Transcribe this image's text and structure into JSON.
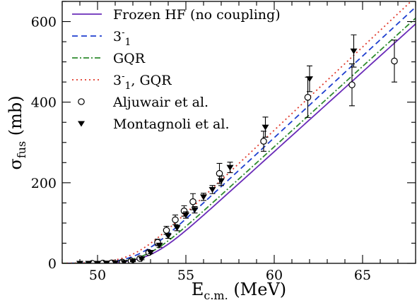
{
  "chart_data": {
    "type": "line",
    "xlabel": {
      "main": "E",
      "sub": "c.m.",
      "unit": " (MeV)"
    },
    "ylabel": {
      "main": "σ",
      "sub": "fus",
      "unit": " (mb)"
    },
    "xlim": [
      48,
      68
    ],
    "ylim": [
      0,
      650
    ],
    "xticks": [
      "50",
      "55",
      "60",
      "65"
    ],
    "yticks": [
      "0",
      "200",
      "400",
      "600"
    ],
    "legend_position": "top-left",
    "series": [
      {
        "key": "frozen",
        "label": "Frozen HF (no coupling)",
        "color": "#6a2bb8",
        "dash": "",
        "threshold": 53.0,
        "slope": 39.6,
        "width": 0.8
      },
      {
        "key": "octupole",
        "label": "3⁻₁",
        "color": "#1f3fcf",
        "dash": "8,5",
        "threshold": 52.3,
        "slope": 40.5,
        "width": 0.8
      },
      {
        "key": "gqr",
        "label": "GQR",
        "color": "#2e8b2e",
        "dash": "8,3,2,3",
        "threshold": 52.75,
        "slope": 39.9,
        "width": 0.8
      },
      {
        "key": "both",
        "label": "3⁻₁, GQR",
        "color": "#e0392b",
        "dash": "2,4",
        "threshold": 52.0,
        "slope": 41.3,
        "width": 0.8
      }
    ],
    "points": [
      {
        "key": "aljuwair",
        "label": "Aljuwair et al.",
        "marker": "open-circle",
        "data": [
          {
            "x": 49.7,
            "y": 0,
            "err": 0
          },
          {
            "x": 50.3,
            "y": 0.5,
            "err": 0
          },
          {
            "x": 50.8,
            "y": 1,
            "err": 0
          },
          {
            "x": 51.4,
            "y": 3,
            "err": 1
          },
          {
            "x": 51.9,
            "y": 6,
            "err": 2
          },
          {
            "x": 52.4,
            "y": 12,
            "err": 3
          },
          {
            "x": 52.9,
            "y": 27,
            "err": 5
          },
          {
            "x": 53.4,
            "y": 52,
            "err": 8
          },
          {
            "x": 53.9,
            "y": 82,
            "err": 10
          },
          {
            "x": 54.4,
            "y": 108,
            "err": 12
          },
          {
            "x": 54.9,
            "y": 130,
            "err": 13
          },
          {
            "x": 55.4,
            "y": 153,
            "err": 20
          },
          {
            "x": 56.9,
            "y": 223,
            "err": 25
          },
          {
            "x": 59.4,
            "y": 303,
            "err": 25
          },
          {
            "x": 61.9,
            "y": 412,
            "err": 50
          },
          {
            "x": 64.4,
            "y": 443,
            "err": 52
          },
          {
            "x": 66.8,
            "y": 502,
            "err": 52
          }
        ]
      },
      {
        "key": "montagnoli",
        "label": "Montagnoli et al.",
        "marker": "filled-down-triangle",
        "data": [
          {
            "x": 49.0,
            "y": 0,
            "err": 0
          },
          {
            "x": 49.5,
            "y": 0,
            "err": 0
          },
          {
            "x": 50.0,
            "y": 0,
            "err": 0
          },
          {
            "x": 50.5,
            "y": 0.5,
            "err": 0
          },
          {
            "x": 51.0,
            "y": 1,
            "err": 0
          },
          {
            "x": 51.5,
            "y": 2,
            "err": 0
          },
          {
            "x": 52.0,
            "y": 5,
            "err": 1
          },
          {
            "x": 52.5,
            "y": 11,
            "err": 2
          },
          {
            "x": 53.0,
            "y": 27,
            "err": 3
          },
          {
            "x": 53.5,
            "y": 45,
            "err": 5
          },
          {
            "x": 54.0,
            "y": 68,
            "err": 6
          },
          {
            "x": 54.5,
            "y": 88,
            "err": 7
          },
          {
            "x": 55.0,
            "y": 120,
            "err": 8
          },
          {
            "x": 55.5,
            "y": 133,
            "err": 8
          },
          {
            "x": 56.0,
            "y": 165,
            "err": 9
          },
          {
            "x": 56.5,
            "y": 183,
            "err": 10
          },
          {
            "x": 57.0,
            "y": 205,
            "err": 12
          },
          {
            "x": 57.5,
            "y": 238,
            "err": 13
          },
          {
            "x": 59.5,
            "y": 338,
            "err": 25
          },
          {
            "x": 62.0,
            "y": 458,
            "err": 32
          },
          {
            "x": 64.5,
            "y": 527,
            "err": 40
          }
        ]
      }
    ]
  }
}
